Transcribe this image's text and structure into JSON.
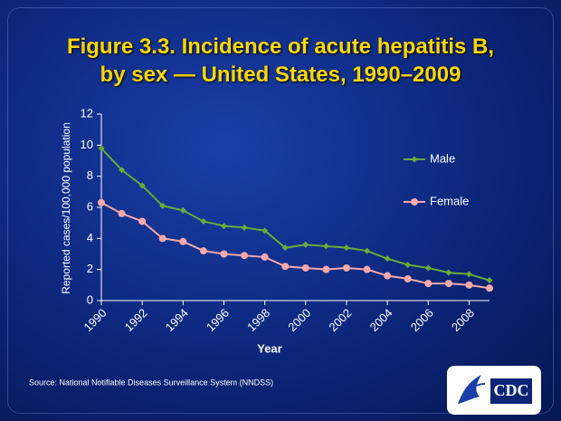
{
  "chart_data": {
    "type": "line",
    "title": [
      "Figure 3.3. Incidence of acute hepatitis B,",
      "by sex — United States, 1990–2009"
    ],
    "x_label": "Year",
    "y_label": "Reported cases/100,000 population",
    "x": [
      1990,
      1991,
      1992,
      1993,
      1994,
      1995,
      1996,
      1997,
      1998,
      1999,
      2000,
      2001,
      2002,
      2003,
      2004,
      2005,
      2006,
      2007,
      2008,
      2009
    ],
    "series": [
      {
        "name": "Male",
        "color": "#6aaa3a",
        "values": [
          9.8,
          8.4,
          7.4,
          6.1,
          5.8,
          5.1,
          4.8,
          4.7,
          4.5,
          3.4,
          3.6,
          3.5,
          3.4,
          3.2,
          2.7,
          2.3,
          2.1,
          1.8,
          1.7,
          1.3
        ]
      },
      {
        "name": "Female",
        "color": "#f7a9a8",
        "values": [
          6.3,
          5.6,
          5.1,
          4.0,
          3.8,
          3.2,
          3.0,
          2.9,
          2.8,
          2.2,
          2.1,
          2.0,
          2.1,
          2.0,
          1.6,
          1.4,
          1.1,
          1.1,
          1.0,
          0.8
        ]
      }
    ],
    "xlim": [
      1990,
      2009
    ],
    "xticks": [
      1990,
      1992,
      1994,
      1996,
      1998,
      2000,
      2002,
      2004,
      2006,
      2008
    ],
    "ylim": [
      0,
      12
    ],
    "yticks": [
      0,
      2,
      4,
      6,
      8,
      10,
      12
    ],
    "grid": false,
    "legend": "right",
    "source": "Source: National Notifiable Diseases Surveillance System (NNDSS)",
    "logo_text": "CDC"
  }
}
